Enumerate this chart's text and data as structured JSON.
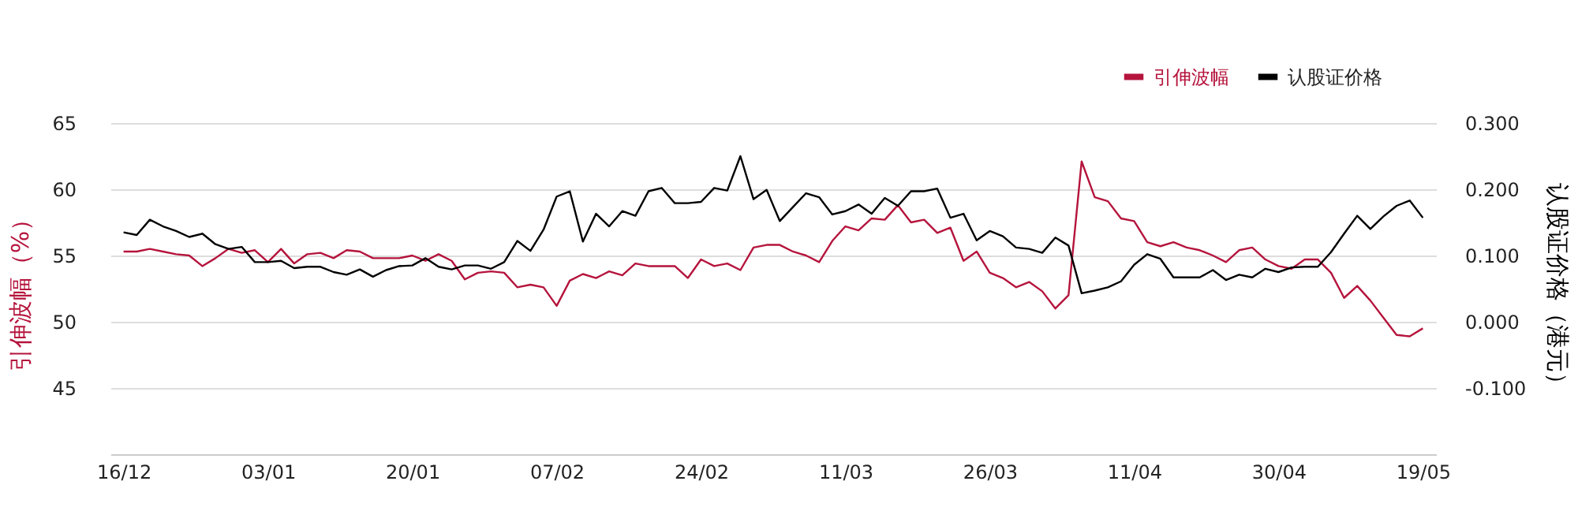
{
  "chart_data": {
    "type": "line",
    "ylabel": "引伸波幅（%）",
    "y2label": "认股证价格（港元）",
    "categories": [
      "16/12",
      null,
      null,
      null,
      null,
      null,
      null,
      null,
      null,
      null,
      null,
      "03/01",
      null,
      null,
      null,
      null,
      null,
      null,
      null,
      null,
      null,
      null,
      "20/01",
      null,
      null,
      null,
      null,
      null,
      null,
      null,
      null,
      null,
      null,
      "07/02",
      null,
      null,
      null,
      null,
      null,
      null,
      null,
      null,
      null,
      null,
      "24/02",
      null,
      null,
      null,
      null,
      null,
      null,
      null,
      null,
      null,
      null,
      "11/03",
      null,
      null,
      null,
      null,
      null,
      null,
      null,
      null,
      null,
      null,
      "26/03",
      null,
      null,
      null,
      null,
      null,
      null,
      null,
      null,
      null,
      null,
      "11/04",
      null,
      null,
      null,
      null,
      null,
      null,
      null,
      null,
      null,
      null,
      "30/04",
      null,
      null,
      null,
      null,
      null,
      null,
      null,
      null,
      null,
      null,
      "19/05"
    ],
    "series": [
      {
        "name": "引伸波幅",
        "color": "#b5143c",
        "values": [
          55.3,
          55.3,
          55.5,
          55.3,
          55.1,
          55.0,
          54.2,
          54.8,
          55.5,
          55.2,
          55.4,
          54.5,
          55.5,
          54.4,
          55.1,
          55.2,
          54.8,
          55.4,
          55.3,
          54.8,
          54.8,
          54.8,
          55.0,
          54.6,
          55.1,
          54.6,
          53.2,
          53.7,
          53.8,
          53.7,
          52.6,
          52.8,
          52.6,
          51.2,
          53.1,
          53.6,
          53.3,
          53.8,
          53.5,
          54.4,
          54.2,
          54.2,
          54.2,
          53.3,
          54.7,
          54.2,
          54.4,
          53.9,
          55.6,
          55.8,
          55.8,
          55.3,
          55.0,
          54.5,
          56.1,
          57.2,
          56.9,
          57.8,
          57.7,
          58.8,
          57.5,
          57.7,
          56.7,
          57.1,
          54.6,
          55.3,
          53.7,
          53.3,
          52.6,
          53.0,
          52.3,
          51.0,
          52.0,
          62.1,
          59.4,
          59.1,
          57.8,
          57.6,
          56.0,
          55.7,
          56.0,
          55.6,
          55.4,
          55.0,
          54.5,
          55.4,
          55.6,
          54.7,
          54.2,
          54.0,
          54.7,
          54.7,
          53.7,
          51.8,
          52.7,
          51.6,
          50.3,
          49.0,
          48.9,
          49.5
        ]
      },
      {
        "name": "认股证价格",
        "color": "#000000",
        "axis": "y2",
        "values": [
          0.135,
          0.131,
          0.154,
          0.144,
          0.137,
          0.128,
          0.133,
          0.117,
          0.11,
          0.113,
          0.09,
          0.09,
          0.092,
          0.081,
          0.083,
          0.083,
          0.075,
          0.071,
          0.079,
          0.068,
          0.078,
          0.084,
          0.085,
          0.096,
          0.083,
          0.079,
          0.085,
          0.085,
          0.08,
          0.09,
          0.122,
          0.107,
          0.139,
          0.189,
          0.197,
          0.121,
          0.163,
          0.144,
          0.167,
          0.16,
          0.197,
          0.202,
          0.179,
          0.179,
          0.181,
          0.202,
          0.198,
          0.25,
          0.185,
          0.199,
          0.152,
          0.173,
          0.194,
          0.188,
          0.162,
          0.167,
          0.177,
          0.163,
          0.187,
          0.175,
          0.197,
          0.197,
          0.201,
          0.157,
          0.163,
          0.123,
          0.137,
          0.129,
          0.112,
          0.11,
          0.104,
          0.127,
          0.115,
          0.043,
          0.047,
          0.052,
          0.061,
          0.086,
          0.102,
          0.095,
          0.067,
          0.067,
          0.067,
          0.078,
          0.063,
          0.071,
          0.067,
          0.08,
          0.075,
          0.082,
          0.083,
          0.083,
          0.105,
          0.133,
          0.16,
          0.14,
          0.159,
          0.175,
          0.183,
          0.157
        ]
      }
    ],
    "ylim": [
      40,
      65
    ],
    "yticks": [
      45,
      50,
      55,
      60,
      65
    ],
    "y2lim": [
      -0.2,
      0.3
    ],
    "y2ticks": [
      {
        "value": -0.1,
        "label": "-0.100"
      },
      {
        "value": 0,
        "label": "0.000"
      },
      {
        "value": 0.1,
        "label": "0.100"
      },
      {
        "value": 0.2,
        "label": "0.200"
      },
      {
        "value": 0.3,
        "label": "0.300"
      }
    ],
    "grid": "y",
    "legend": "top right",
    "marker": "none",
    "line_style": "solid"
  }
}
